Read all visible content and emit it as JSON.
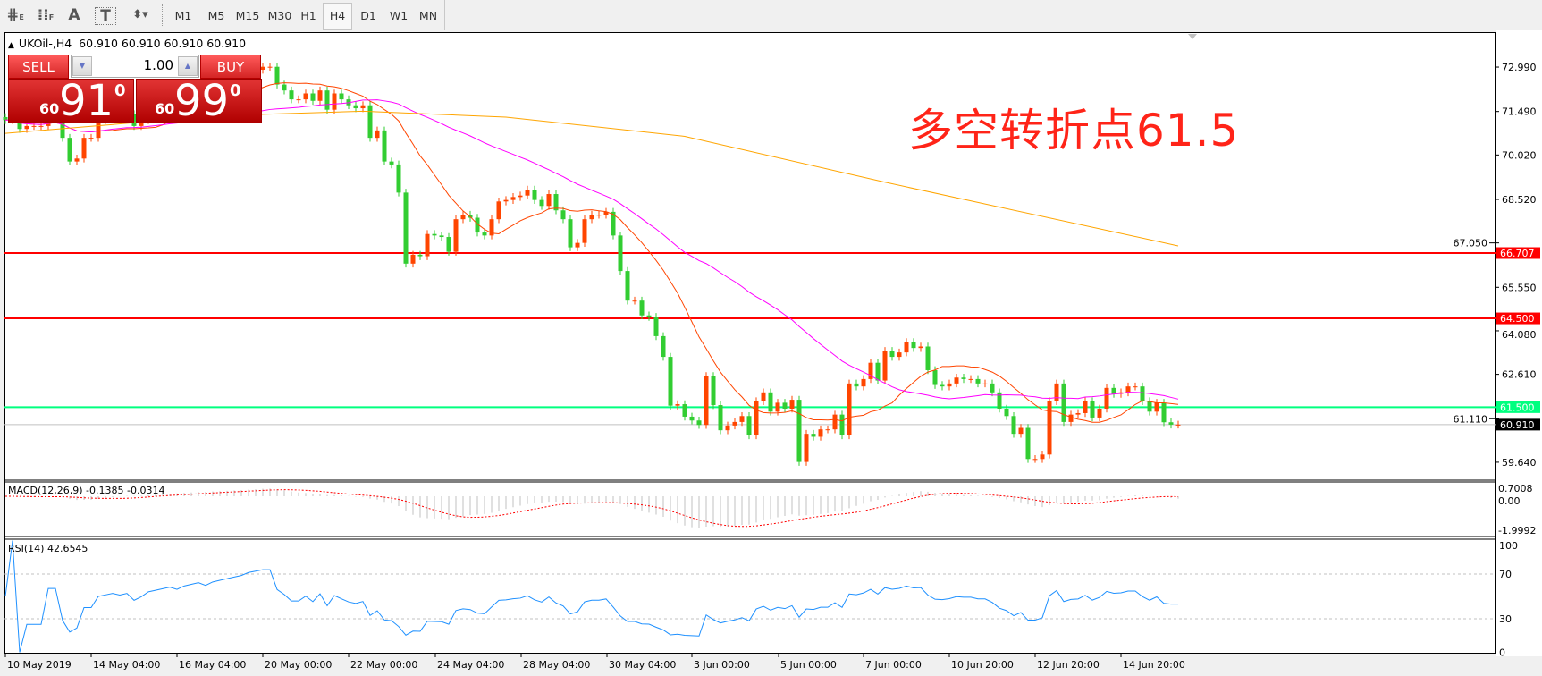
{
  "toolbar": {
    "icons": [
      "crosshair-grid-icon",
      "grid-icon",
      "text-icon",
      "text-label-icon",
      "arrows-icon"
    ],
    "icon_glyphs": {
      "text": "A",
      "label": "T"
    },
    "timeframes": [
      "M1",
      "M5",
      "M15",
      "M30",
      "H1",
      "H4",
      "D1",
      "W1",
      "MN"
    ],
    "selected_timeframe": "H4"
  },
  "chart": {
    "symbol_title": "UKOil-,H4",
    "ohlc_text": "60.910 60.910 60.910 60.910",
    "annotation": "多空转折点61.5",
    "annotation_color": "#ff2418"
  },
  "trade_panel": {
    "sell_label": "SELL",
    "buy_label": "BUY",
    "lot_value": "1.00",
    "sell_price": {
      "prefix": "60",
      "main": "91",
      "sup": "0"
    },
    "buy_price": {
      "prefix": "60",
      "main": "99",
      "sup": "0"
    }
  },
  "price_axis": {
    "ticks": [
      "72.990",
      "71.490",
      "70.020",
      "68.520",
      "67.050",
      "65.550",
      "64.080",
      "62.610",
      "61.110",
      "59.640"
    ],
    "markers": [
      {
        "label": "66.707",
        "value": 66.707,
        "color": "#ff0000"
      },
      {
        "label": "64.500",
        "value": 64.5,
        "color": "#ff0000"
      },
      {
        "label": "61.500",
        "value": 61.5,
        "color": "#00ff7f"
      },
      {
        "label": "60.910",
        "value": 60.91,
        "color": "#000000"
      }
    ]
  },
  "macd": {
    "label": "MACD(12,26,9) -0.1385 -0.0314",
    "ticks": [
      "0.7008",
      "0.00",
      "-1.9992"
    ],
    "fast": 12,
    "slow": 26,
    "signal": 9
  },
  "rsi": {
    "label": "RSI(14) 42.6545",
    "ticks": [
      "100",
      "70",
      "30",
      "0"
    ],
    "period": 14,
    "levels": [
      70,
      30
    ]
  },
  "time_axis": [
    "10 May 2019",
    "14 May 04:00",
    "16 May 04:00",
    "20 May 00:00",
    "22 May 00:00",
    "24 May 04:00",
    "28 May 04:00",
    "30 May 04:00",
    "3 Jun 00:00",
    "5 Jun 00:00",
    "7 Jun 00:00",
    "10 Jun 20:00",
    "12 Jun 20:00",
    "14 Jun 20:00"
  ],
  "colors": {
    "bull": "#ff4500",
    "bear": "#32cd32",
    "ma_fast": "#ff4500",
    "ma_mid": "#ff00ff",
    "ma_slow": "#ffa500",
    "macd_hist": "#c0c0c0",
    "macd_signal": "#ff0000",
    "rsi": "#1e90ff"
  },
  "chart_data": {
    "type": "candlestick",
    "timeframe": "H4",
    "closes": [
      71.2,
      71.2,
      70.9,
      71.0,
      71.0,
      71.0,
      71.3,
      71.3,
      70.6,
      69.8,
      69.9,
      70.6,
      70.6,
      71.2,
      71.3,
      71.4,
      71.3,
      71.4,
      71.0,
      71.2,
      71.5,
      71.6,
      71.7,
      71.8,
      71.7,
      71.9,
      72.0,
      72.1,
      72.0,
      72.2,
      72.3,
      72.4,
      72.5,
      72.6,
      72.8,
      72.9,
      73.0,
      73.0,
      72.4,
      72.2,
      71.9,
      71.9,
      72.1,
      71.85,
      72.2,
      71.55,
      72.1,
      71.9,
      71.7,
      71.6,
      71.7,
      70.6,
      70.85,
      69.8,
      69.7,
      68.75,
      66.35,
      66.65,
      66.6,
      67.35,
      67.3,
      67.25,
      66.75,
      67.85,
      68.0,
      67.9,
      67.4,
      67.3,
      67.85,
      68.45,
      68.5,
      68.6,
      68.65,
      68.85,
      68.5,
      68.3,
      68.7,
      68.15,
      67.85,
      66.9,
      67.05,
      67.85,
      68.0,
      68.0,
      68.1,
      67.3,
      66.1,
      65.1,
      65.1,
      64.6,
      64.55,
      63.9,
      63.2,
      61.55,
      61.6,
      61.18,
      61.05,
      60.9,
      62.55,
      61.57,
      60.72,
      60.88,
      61.0,
      61.2,
      60.55,
      61.7,
      62.0,
      61.35,
      61.65,
      61.45,
      61.75,
      59.65,
      60.6,
      60.5,
      60.75,
      60.75,
      61.25,
      60.55,
      62.3,
      62.2,
      62.45,
      63.0,
      62.4,
      63.4,
      63.2,
      63.35,
      63.7,
      63.5,
      63.55,
      62.75,
      62.25,
      62.2,
      62.3,
      62.5,
      62.45,
      62.45,
      62.3,
      62.3,
      62.0,
      61.45,
      61.2,
      60.6,
      60.8,
      59.75,
      59.75,
      59.9,
      61.7,
      62.3,
      61.0,
      61.25,
      61.3,
      61.7,
      61.15,
      61.45,
      62.15,
      61.95,
      62.0,
      62.2,
      62.2,
      61.7,
      61.35,
      61.65,
      60.99,
      60.91,
      60.91
    ],
    "first_open": 71.3,
    "ma_fast_period": 14,
    "ma_mid_period": 40,
    "ma_slow_points": [
      {
        "bar": 0,
        "value": 70.75
      },
      {
        "bar": 30,
        "value": 71.35
      },
      {
        "bar": 50,
        "value": 71.5
      },
      {
        "bar": 70,
        "value": 71.3
      },
      {
        "bar": 95,
        "value": 70.65
      },
      {
        "bar": 123,
        "value": 69.1
      },
      {
        "bar": 164,
        "value": 66.95
      }
    ],
    "horizontal_lines": [
      66.707,
      64.5,
      61.5
    ],
    "current_price": 60.91,
    "ylim": [
      59.3,
      73.9
    ]
  }
}
